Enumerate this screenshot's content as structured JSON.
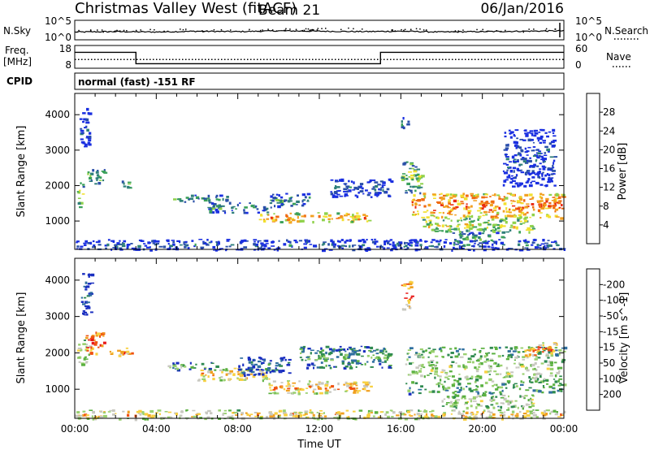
{
  "header": {
    "station": "Christmas Valley West (fitACF)",
    "beam": "Beam 21",
    "date": "06/Jan/2016"
  },
  "top_panel_1": {
    "left_label": "N.Sky",
    "left_ticks": [
      "10^5",
      "10^0"
    ],
    "right_ticks": [
      "10^5",
      "10^0"
    ],
    "right_label": "N.Search"
  },
  "top_panel_2": {
    "left_label_line1": "Freq.",
    "left_label_line2": "[MHz]",
    "left_ticks": [
      "18",
      "8"
    ],
    "right_ticks": [
      "60",
      "0"
    ],
    "right_label": "Nave"
  },
  "cpid": {
    "label": "CPID",
    "value": "normal (fast) -151 RF"
  },
  "chart_data": [
    {
      "type": "line",
      "name": "noise",
      "x": [
        0,
        2,
        4,
        6,
        8,
        10,
        12,
        14,
        16,
        18,
        20,
        22,
        24
      ],
      "series": [
        {
          "name": "N.Sky",
          "values": [
            2.0,
            2.1,
            2.0,
            2.2,
            2.1,
            2.3,
            2.2,
            2.1,
            2.2,
            2.0,
            2.1,
            2.2,
            2.3
          ]
        },
        {
          "name": "N.Search",
          "values": [
            2.4,
            2.5,
            2.6,
            2.5,
            2.7,
            2.8,
            2.9,
            2.6,
            2.8,
            2.5,
            2.4,
            2.7,
            2.6
          ]
        }
      ],
      "ylim": [
        0,
        5
      ],
      "log_scale": true
    },
    {
      "type": "line",
      "name": "frequency",
      "x": [
        0,
        3,
        3,
        15,
        15,
        24
      ],
      "series": [
        {
          "name": "Freq",
          "values": [
            15,
            15,
            10,
            10,
            15,
            15
          ]
        },
        {
          "name": "Nave",
          "values": [
            23,
            23,
            23,
            23,
            23,
            23
          ]
        }
      ],
      "ylim": [
        8,
        18
      ],
      "y2lim": [
        0,
        60
      ]
    },
    {
      "type": "heatmap",
      "name": "power",
      "xlabel": "",
      "ylabel": "Slant Range [km]",
      "xlim": [
        0,
        24
      ],
      "ylim": [
        200,
        4600
      ],
      "yticks": [
        "1000",
        "2000",
        "3000",
        "4000"
      ],
      "colorbar": {
        "label": "Power [dB]",
        "ticks": [
          "4",
          "8",
          "12",
          "16",
          "20",
          "24",
          "28"
        ],
        "colors": [
          "#1a2fe0",
          "#2a4fa8",
          "#2f7f7a",
          "#3aa05a",
          "#8fd14a",
          "#f2e030",
          "#f2a020",
          "#f06a10",
          "#ea2a10"
        ]
      },
      "regions": [
        {
          "x0": 0.1,
          "x1": 0.4,
          "y0": 1400,
          "y1": 2100,
          "level": 0.55
        },
        {
          "x0": 0.2,
          "x1": 0.7,
          "y0": 3100,
          "y1": 4200,
          "level": 0.15
        },
        {
          "x0": 0.6,
          "x1": 1.5,
          "y0": 2050,
          "y1": 2500,
          "level": 0.5
        },
        {
          "x0": 2.2,
          "x1": 2.8,
          "y0": 1950,
          "y1": 2150,
          "level": 0.45
        },
        {
          "x0": 4.8,
          "x1": 7.5,
          "y0": 1550,
          "y1": 1750,
          "level": 0.35
        },
        {
          "x0": 6.5,
          "x1": 9.5,
          "y0": 1250,
          "y1": 1550,
          "level": 0.35
        },
        {
          "x0": 9.0,
          "x1": 14.5,
          "y0": 1000,
          "y1": 1250,
          "level": 0.8
        },
        {
          "x0": 9.5,
          "x1": 11.5,
          "y0": 1400,
          "y1": 1800,
          "level": 0.3
        },
        {
          "x0": 12.5,
          "x1": 15.5,
          "y0": 1700,
          "y1": 2200,
          "level": 0.2
        },
        {
          "x0": 0.0,
          "x1": 24.0,
          "y0": 200,
          "y1": 500,
          "level": 0.2
        },
        {
          "x0": 16.5,
          "x1": 24.0,
          "y0": 1100,
          "y1": 1800,
          "level": 0.85
        },
        {
          "x0": 17.0,
          "x1": 22.5,
          "y0": 700,
          "y1": 1100,
          "level": 0.6
        },
        {
          "x0": 18.5,
          "x1": 21.0,
          "y0": 400,
          "y1": 700,
          "level": 0.4
        },
        {
          "x0": 16.0,
          "x1": 17.0,
          "y0": 1800,
          "y1": 2700,
          "level": 0.5
        },
        {
          "x0": 21.0,
          "x1": 23.5,
          "y0": 2000,
          "y1": 3600,
          "level": 0.15
        },
        {
          "x0": 16.0,
          "x1": 16.4,
          "y0": 3600,
          "y1": 4000,
          "level": 0.3
        }
      ]
    },
    {
      "type": "heatmap",
      "name": "velocity",
      "xlabel": "Time UT",
      "ylabel": "Slant Range [km]",
      "xlim": [
        0,
        24
      ],
      "ylim": [
        200,
        4600
      ],
      "xticks": [
        "00:00",
        "04:00",
        "08:00",
        "12:00",
        "16:00",
        "20:00",
        "00:00"
      ],
      "yticks": [
        "1000",
        "2000",
        "3000",
        "4000"
      ],
      "colorbar": {
        "label": "Velocity [m s^-1]",
        "ticks": [
          "200",
          "100",
          "50",
          "15",
          "-15",
          "-50",
          "-100",
          "-200"
        ],
        "colors": [
          "#1a2fc0",
          "#2f6fa0",
          "#2f8a50",
          "#5ab040",
          "#9ad070",
          "#c8c8c0",
          "#f8d040",
          "#f0a020",
          "#ef5010",
          "#e81818"
        ]
      },
      "regions": [
        {
          "x0": 0.1,
          "x1": 0.7,
          "y0": 1700,
          "y1": 2400,
          "level": 0.6
        },
        {
          "x0": 0.3,
          "x1": 0.8,
          "y0": 3000,
          "y1": 4200,
          "level": 0.1
        },
        {
          "x0": 0.5,
          "x1": 1.4,
          "y0": 2000,
          "y1": 2600,
          "level": 0.95
        },
        {
          "x0": 1.4,
          "x1": 2.8,
          "y0": 1950,
          "y1": 2150,
          "level": 0.85
        },
        {
          "x0": 4.5,
          "x1": 7.0,
          "y0": 1550,
          "y1": 1750,
          "level": 0.4
        },
        {
          "x0": 6.0,
          "x1": 9.5,
          "y0": 1250,
          "y1": 1600,
          "level": 0.7
        },
        {
          "x0": 8.0,
          "x1": 10.5,
          "y0": 1400,
          "y1": 1900,
          "level": 0.2
        },
        {
          "x0": 9.5,
          "x1": 14.5,
          "y0": 900,
          "y1": 1250,
          "level": 0.75
        },
        {
          "x0": 11.0,
          "x1": 15.5,
          "y0": 1600,
          "y1": 2200,
          "level": 0.35
        },
        {
          "x0": 0.0,
          "x1": 24.0,
          "y0": 200,
          "y1": 450,
          "level": 0.7
        },
        {
          "x0": 16.2,
          "x1": 24.0,
          "y0": 900,
          "y1": 2200,
          "level": 0.5
        },
        {
          "x0": 18.0,
          "x1": 22.5,
          "y0": 500,
          "y1": 900,
          "level": 0.55
        },
        {
          "x0": 16.0,
          "x1": 16.5,
          "y0": 3200,
          "y1": 4000,
          "level": 0.9
        },
        {
          "x0": 22.0,
          "x1": 23.6,
          "y0": 1900,
          "y1": 2300,
          "level": 0.85
        }
      ]
    }
  ]
}
